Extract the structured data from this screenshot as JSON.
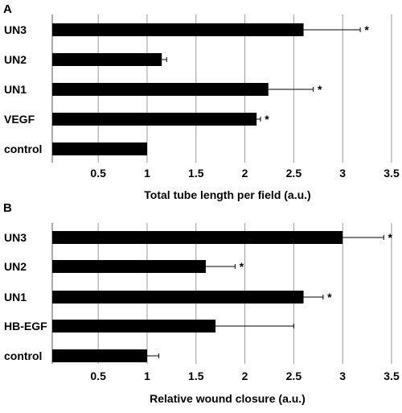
{
  "chart_data": [
    {
      "type": "bar",
      "orientation": "horizontal",
      "panel": "A",
      "categories": [
        "UN3",
        "UN2",
        "UN1",
        "VEGF",
        "control"
      ],
      "values": [
        2.6,
        1.15,
        2.24,
        2.12,
        1.0
      ],
      "errors": [
        0.58,
        0.05,
        0.46,
        0.04,
        0.0
      ],
      "significance": [
        "*",
        "",
        "*",
        "*",
        ""
      ],
      "xlabel": "Total tube length per field (a.u.)",
      "xlim": [
        0.03,
        3.5
      ],
      "xticks": [
        0.5,
        1,
        1.5,
        2,
        2.5,
        3,
        3.5
      ],
      "xtick_labels": [
        "0.5",
        "1",
        "1.5",
        "2",
        "2.5",
        "3",
        "3.5"
      ],
      "grid": "vertical",
      "bar_color": "#000000"
    },
    {
      "type": "bar",
      "orientation": "horizontal",
      "panel": "B",
      "categories": [
        "UN3",
        "UN2",
        "UN1",
        "HB-EGF",
        "control"
      ],
      "values": [
        3.0,
        1.6,
        2.6,
        1.7,
        1.0
      ],
      "errors": [
        0.42,
        0.3,
        0.2,
        0.8,
        0.12
      ],
      "significance": [
        "*",
        "*",
        "*",
        "",
        ""
      ],
      "xlabel": "Relative wound closure (a.u.)",
      "xlim": [
        0.03,
        3.5
      ],
      "xticks": [
        0.5,
        1,
        1.5,
        2,
        2.5,
        3,
        3.5
      ],
      "xtick_labels": [
        "0.5",
        "1",
        "1.5",
        "2",
        "2.5",
        "3",
        "3.5"
      ],
      "grid": "vertical",
      "bar_color": "#000000"
    }
  ]
}
